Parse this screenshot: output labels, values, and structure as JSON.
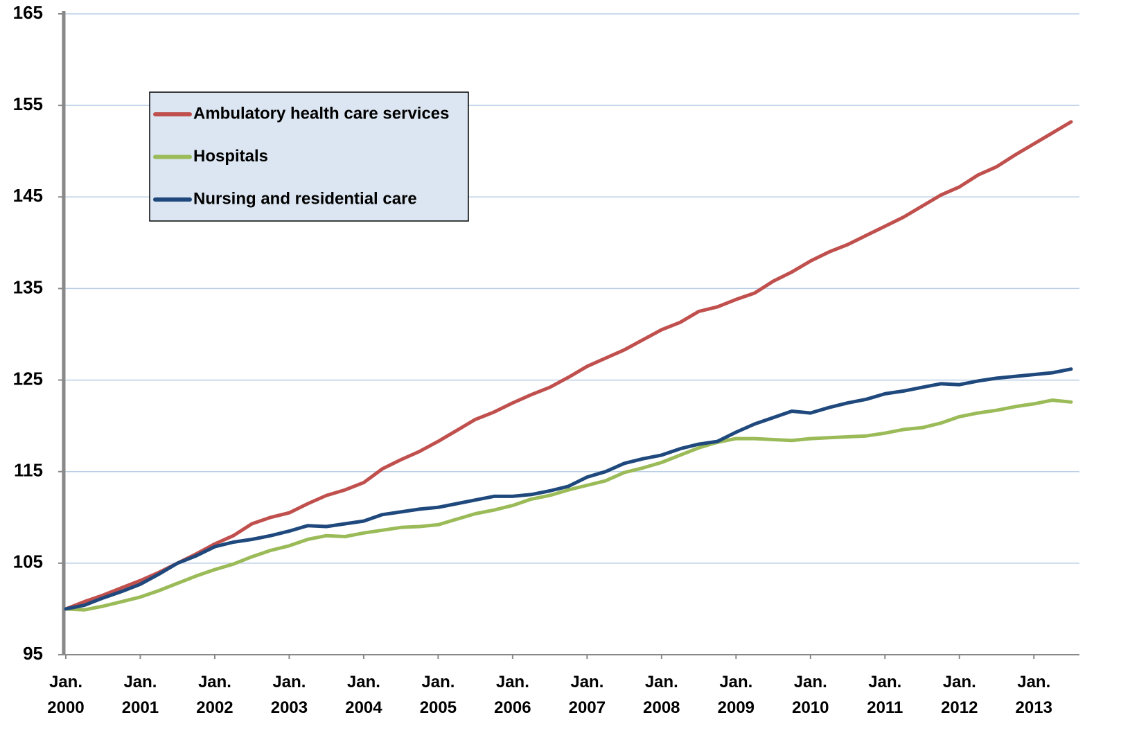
{
  "chart_data": {
    "type": "line",
    "categories": [
      "Jan. 2000",
      null,
      null,
      null,
      "Jan. 2001",
      null,
      null,
      null,
      "Jan. 2002",
      null,
      null,
      null,
      "Jan. 2003",
      null,
      null,
      null,
      "Jan. 2004",
      null,
      null,
      null,
      "Jan. 2005",
      null,
      null,
      null,
      "Jan. 2006",
      null,
      null,
      null,
      "Jan. 2007",
      null,
      null,
      null,
      "Jan. 2008",
      null,
      null,
      null,
      "Jan. 2009",
      null,
      null,
      null,
      "Jan. 2010",
      null,
      null,
      null,
      "Jan. 2011",
      null,
      null,
      null,
      "Jan. 2012",
      null,
      null,
      null,
      "Jan. 2013",
      null,
      null
    ],
    "series": [
      {
        "name": "Ambulatory health care services",
        "color": "#c0504d",
        "values": [
          100,
          100.8,
          101.5,
          102.3,
          103.1,
          104.0,
          105.0,
          106.0,
          107.1,
          108.0,
          109.3,
          110.0,
          110.5,
          111.5,
          112.4,
          113.0,
          113.8,
          115.3,
          116.3,
          117.2,
          118.3,
          119.5,
          120.7,
          121.5,
          122.5,
          123.4,
          124.2,
          125.3,
          126.5,
          127.4,
          128.3,
          129.4,
          130.5,
          131.3,
          132.5,
          133.0,
          133.8,
          134.5,
          135.8,
          136.8,
          138.0,
          139.0,
          139.8,
          140.8,
          141.8,
          142.8,
          144.0,
          145.2,
          146.1,
          147.4,
          148.3,
          149.6,
          150.8,
          152.0,
          153.2
        ]
      },
      {
        "name": "Hospitals",
        "color": "#9bbb59",
        "values": [
          100,
          99.9,
          100.3,
          100.8,
          101.3,
          102.0,
          102.8,
          103.6,
          104.3,
          104.9,
          105.7,
          106.4,
          106.9,
          107.6,
          108.0,
          107.9,
          108.3,
          108.6,
          108.9,
          109.0,
          109.2,
          109.8,
          110.4,
          110.8,
          111.3,
          112.0,
          112.4,
          113.0,
          113.5,
          114.0,
          114.9,
          115.4,
          116.0,
          116.8,
          117.6,
          118.2,
          118.6,
          118.6,
          118.5,
          118.4,
          118.6,
          118.7,
          118.8,
          118.9,
          119.2,
          119.6,
          119.8,
          120.3,
          121.0,
          121.4,
          121.7,
          122.1,
          122.4,
          122.8,
          122.6
        ]
      },
      {
        "name": "Nursing and residential care",
        "color": "#1f497d",
        "values": [
          100,
          100.4,
          101.2,
          101.9,
          102.7,
          103.8,
          105.0,
          105.8,
          106.8,
          107.3,
          107.6,
          108.0,
          108.5,
          109.1,
          109.0,
          109.3,
          109.6,
          110.3,
          110.6,
          110.9,
          111.1,
          111.5,
          111.9,
          112.3,
          112.3,
          112.5,
          112.9,
          113.4,
          114.4,
          115.0,
          115.9,
          116.4,
          116.8,
          117.5,
          118.0,
          118.3,
          119.3,
          120.2,
          120.9,
          121.6,
          121.4,
          122.0,
          122.5,
          122.9,
          123.5,
          123.8,
          124.2,
          124.6,
          124.5,
          124.9,
          125.2,
          125.4,
          125.6,
          125.8,
          126.2
        ]
      }
    ],
    "ylim": [
      95,
      165
    ],
    "yticks": [
      95,
      105,
      115,
      125,
      135,
      145,
      155,
      165
    ],
    "grid": true,
    "legend": "upper left"
  }
}
